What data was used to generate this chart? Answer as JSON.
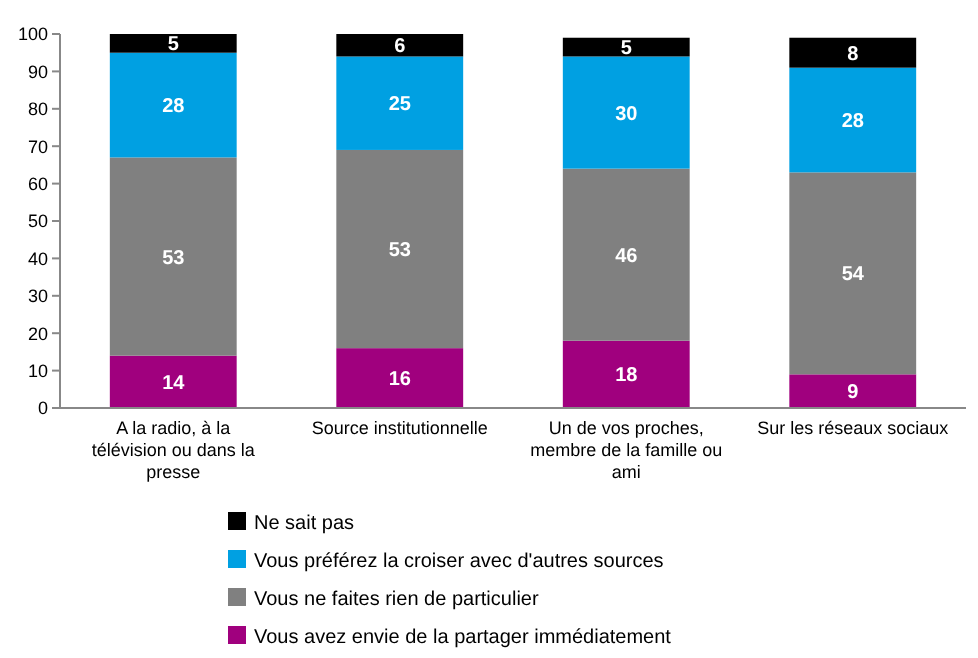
{
  "chart_data": {
    "type": "bar",
    "stacked": true,
    "categories": [
      "A la radio, à la télévision ou dans la presse",
      "Source institutionnelle",
      "Un de vos proches, membre de la famille ou ami",
      "Sur les réseaux sociaux"
    ],
    "series": [
      {
        "name": "Vous avez envie de la partager immédiatement",
        "color": "#a0007e",
        "values": [
          14,
          16,
          18,
          9
        ]
      },
      {
        "name": "Vous ne faites rien de particulier",
        "color": "#808080",
        "values": [
          53,
          53,
          46,
          54
        ]
      },
      {
        "name": "Vous préférez la croiser avec d'autres sources",
        "color": "#00a0e2",
        "values": [
          28,
          25,
          30,
          28
        ]
      },
      {
        "name": "Ne sait pas",
        "color": "#000000",
        "values": [
          5,
          6,
          5,
          8
        ]
      }
    ],
    "ylim": [
      0,
      100
    ],
    "yticks": [
      0,
      10,
      20,
      30,
      40,
      50,
      60,
      70,
      80,
      90,
      100
    ],
    "data_labels": true,
    "legend": "bottom"
  }
}
